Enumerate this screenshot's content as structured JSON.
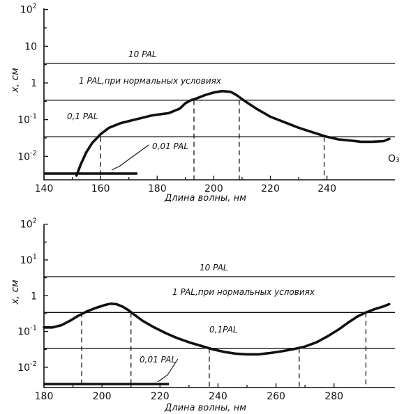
{
  "chart_data": [
    {
      "type": "line",
      "xlabel": "Длина волны, нм",
      "ylabel": "x, см",
      "x_ticks": [
        140,
        160,
        180,
        200,
        220,
        240
      ],
      "x_tick_labels": [
        "140",
        "160",
        "180",
        "200",
        "220",
        "240"
      ],
      "x_range": [
        140,
        264
      ],
      "y_scale": "log",
      "y_range": [
        0.003,
        100
      ],
      "y_ticks": [
        0.01,
        0.1,
        1,
        10,
        100
      ],
      "y_tick_labels": [
        {
          "base": "10",
          "exp": "-2"
        },
        {
          "base": "10",
          "exp": "-1"
        },
        {
          "base": "1",
          "exp": ""
        },
        {
          "base": "10",
          "exp": ""
        },
        {
          "base": "10",
          "exp": "2"
        }
      ],
      "levels": [
        {
          "label": "10 PAL",
          "value": 3.4
        },
        {
          "label": "1 PAL,при нормальных условиях",
          "value": 0.34
        },
        {
          "label": "0,1 PAL",
          "value": 0.034
        },
        {
          "label": "0,01 PAL",
          "value": 0.0034
        }
      ],
      "series": [
        {
          "name": "O₃",
          "x": [
            151.5,
            153,
            155,
            157,
            160,
            163,
            167,
            172,
            178,
            184,
            188,
            190,
            192,
            194,
            197,
            200,
            203,
            206,
            208,
            211,
            215,
            220,
            225,
            230,
            235,
            240,
            244,
            248,
            252,
            256,
            260,
            262
          ],
          "y": [
            0.003,
            0.006,
            0.013,
            0.023,
            0.04,
            0.06,
            0.08,
            0.1,
            0.13,
            0.15,
            0.2,
            0.28,
            0.34,
            0.38,
            0.47,
            0.55,
            0.6,
            0.57,
            0.47,
            0.32,
            0.2,
            0.12,
            0.085,
            0.06,
            0.045,
            0.034,
            0.029,
            0.027,
            0.025,
            0.025,
            0.026,
            0.03
          ]
        }
      ],
      "crossings": [
        {
          "x": 160,
          "level": 0.034
        },
        {
          "x": 193,
          "level": 0.34
        },
        {
          "x": 209,
          "level": 0.34
        },
        {
          "x": 239,
          "level": 0.034
        }
      ]
    },
    {
      "type": "line",
      "xlabel": "Длина волны, нм",
      "ylabel": "x, см",
      "x_ticks": [
        180,
        200,
        220,
        240,
        260,
        280
      ],
      "x_tick_labels": [
        "180",
        "200",
        "220",
        "240",
        "260",
        "280"
      ],
      "x_range": [
        180,
        301
      ],
      "y_scale": "log",
      "y_range": [
        0.003,
        100
      ],
      "y_ticks": [
        0.01,
        0.1,
        1,
        10,
        100
      ],
      "y_tick_labels": [
        {
          "base": "10",
          "exp": "-2"
        },
        {
          "base": "10",
          "exp": "-1"
        },
        {
          "base": "1",
          "exp": ""
        },
        {
          "base": "10",
          "exp": "1"
        },
        {
          "base": "10",
          "exp": "2"
        }
      ],
      "levels": [
        {
          "label": "10 PAL",
          "value": 3.4
        },
        {
          "label": "1 PAL,при нормальных условиях",
          "value": 0.34
        },
        {
          "label": "0,1PAL",
          "value": 0.034
        },
        {
          "label": "0,01 PAL",
          "value": 0.0034
        }
      ],
      "series": [
        {
          "name": "",
          "x": [
            180,
            183,
            186,
            189,
            192,
            195,
            198,
            201,
            203,
            205,
            207,
            209,
            211,
            214,
            218,
            222,
            226,
            230,
            234,
            238,
            242,
            246,
            250,
            254,
            258,
            262,
            266,
            270,
            274,
            278,
            282,
            285,
            288,
            291,
            294,
            297,
            299
          ],
          "y": [
            0.13,
            0.13,
            0.15,
            0.2,
            0.28,
            0.37,
            0.46,
            0.55,
            0.6,
            0.58,
            0.5,
            0.4,
            0.3,
            0.2,
            0.13,
            0.09,
            0.065,
            0.05,
            0.04,
            0.032,
            0.027,
            0.024,
            0.023,
            0.023,
            0.025,
            0.028,
            0.032,
            0.038,
            0.05,
            0.075,
            0.12,
            0.18,
            0.26,
            0.34,
            0.42,
            0.5,
            0.58
          ]
        }
      ],
      "crossings": [
        {
          "x": 193,
          "level": 0.34
        },
        {
          "x": 210,
          "level": 0.34
        },
        {
          "x": 237,
          "level": 0.034
        },
        {
          "x": 268,
          "level": 0.034
        },
        {
          "x": 291,
          "level": 0.34
        }
      ]
    }
  ]
}
